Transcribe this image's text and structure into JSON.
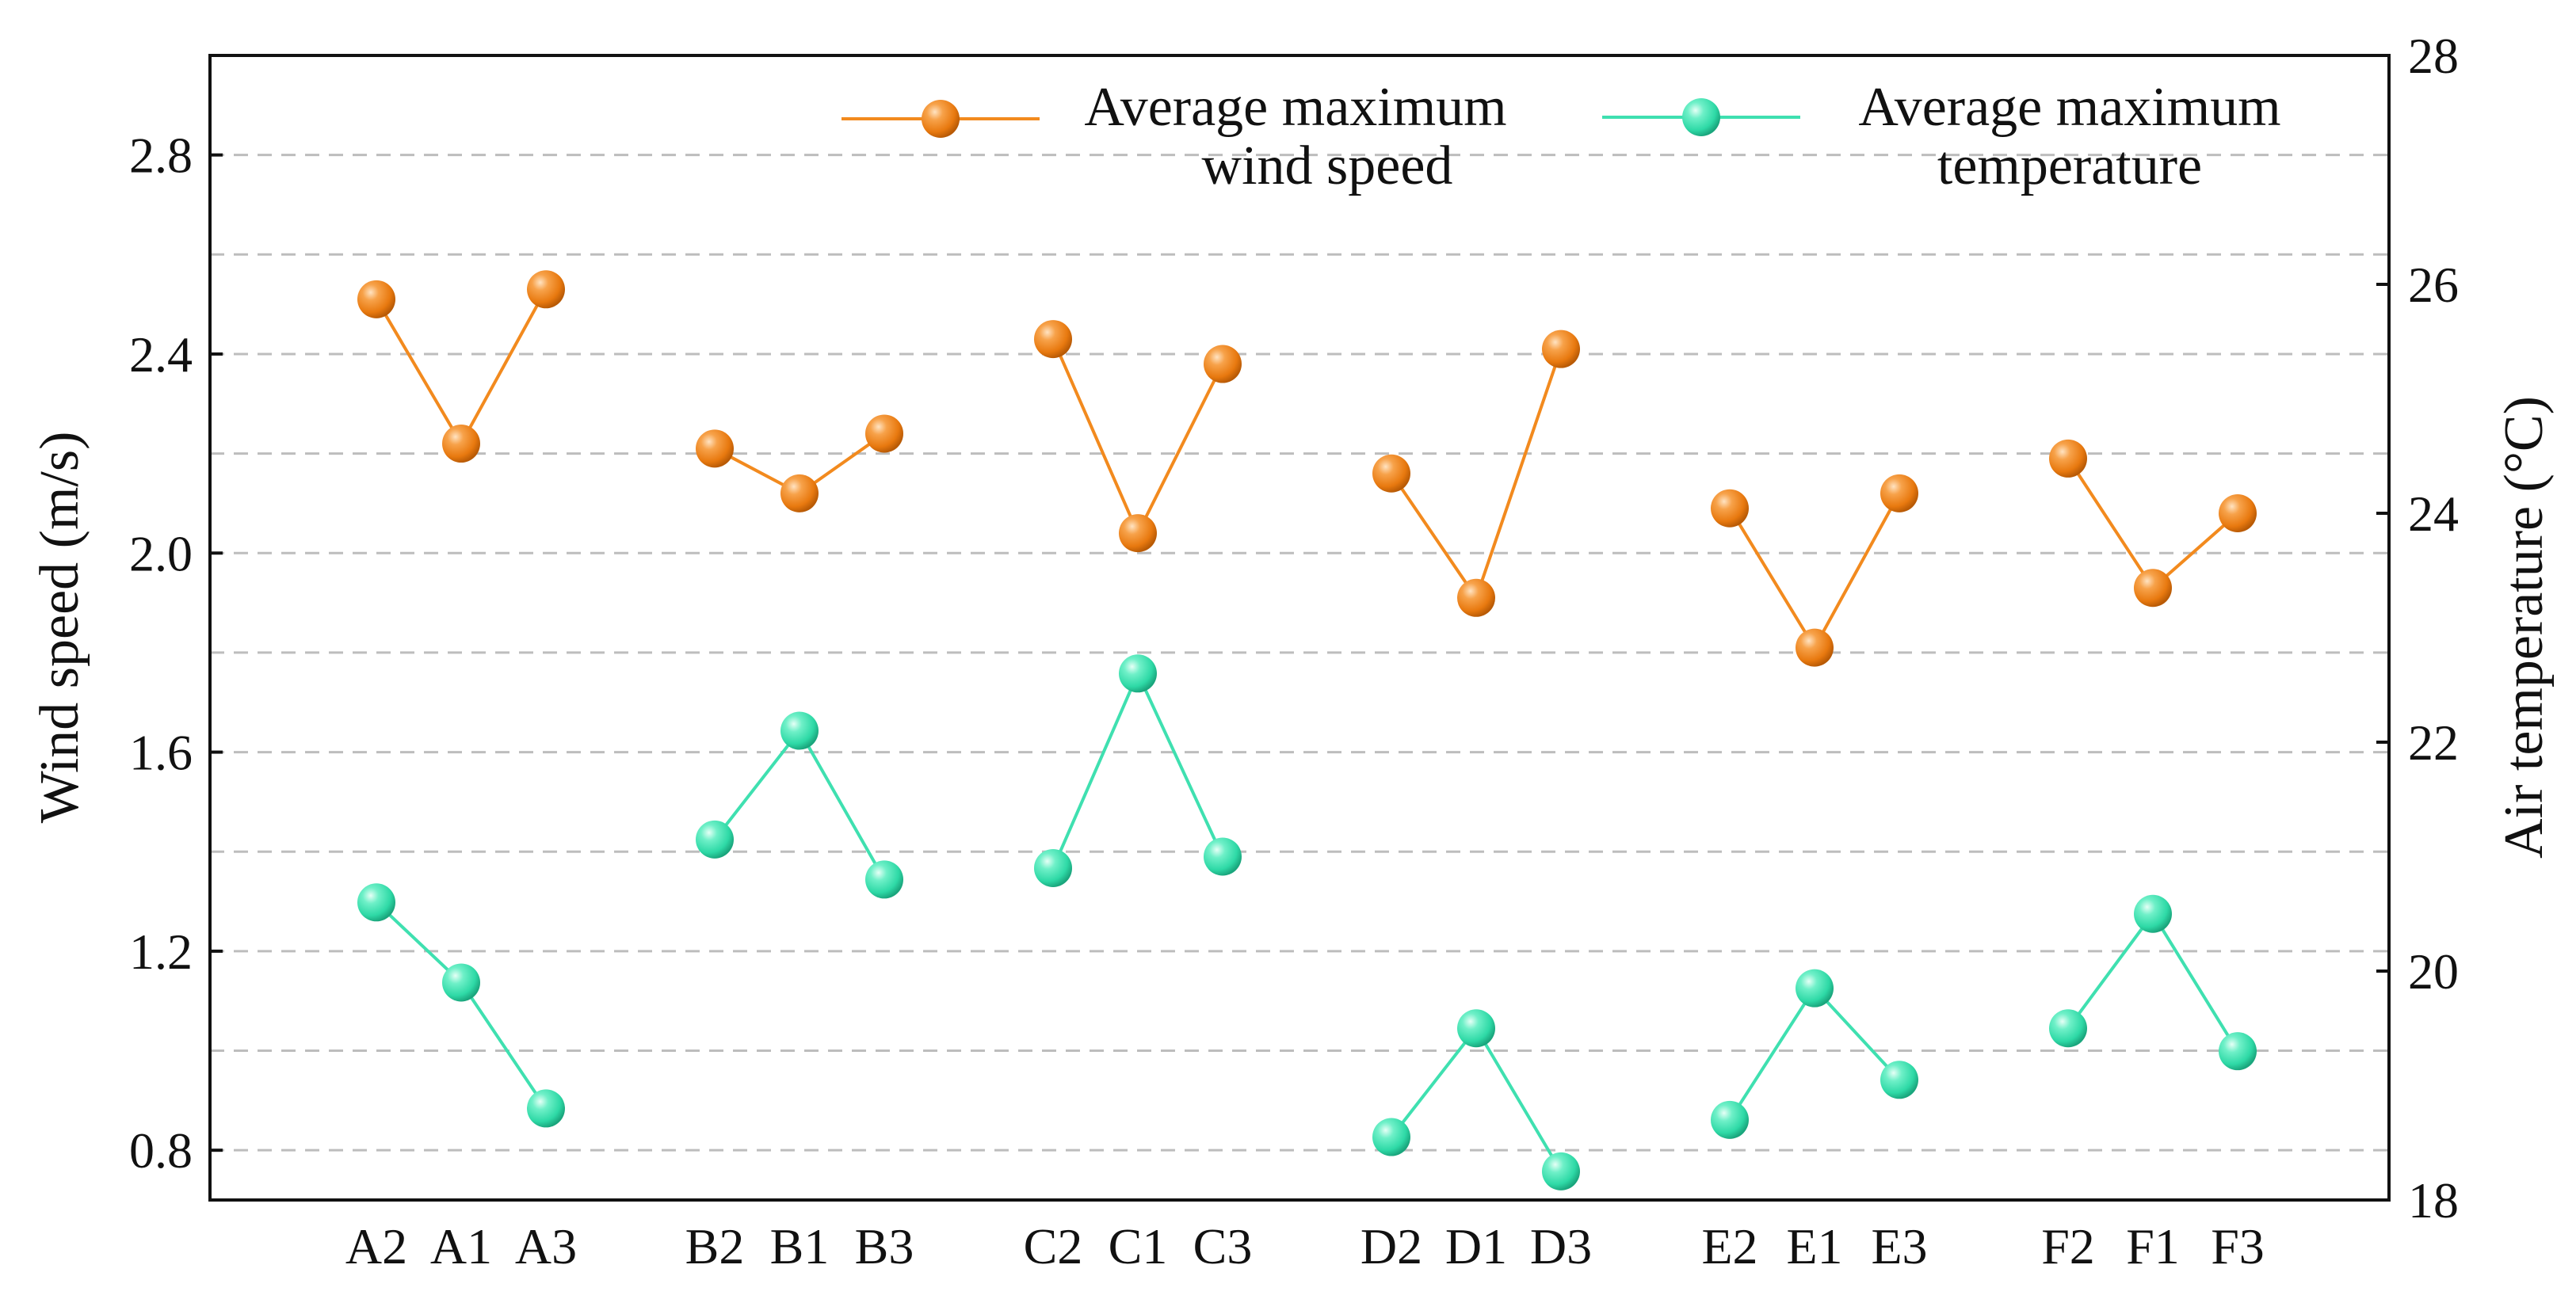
{
  "chart_data": {
    "type": "line",
    "categories": [
      "A2",
      "A1",
      "A3",
      "B2",
      "B1",
      "B3",
      "C2",
      "C1",
      "C3",
      "D2",
      "D1",
      "D3",
      "E2",
      "E1",
      "E3",
      "F2",
      "F1",
      "F3"
    ],
    "groups": [
      {
        "name": "A",
        "categories": [
          "A2",
          "A1",
          "A3"
        ]
      },
      {
        "name": "B",
        "categories": [
          "B2",
          "B1",
          "B3"
        ]
      },
      {
        "name": "C",
        "categories": [
          "C2",
          "C1",
          "C3"
        ]
      },
      {
        "name": "D",
        "categories": [
          "D2",
          "D1",
          "D3"
        ]
      },
      {
        "name": "E",
        "categories": [
          "E2",
          "E1",
          "E3"
        ]
      },
      {
        "name": "F",
        "categories": [
          "F2",
          "F1",
          "F3"
        ]
      }
    ],
    "series": [
      {
        "name": "Average maximum wind speed",
        "legend_lines": [
          "Average maximum",
          "wind speed"
        ],
        "axis": "left",
        "color": "#F28A1E",
        "values": [
          2.51,
          2.22,
          2.53,
          2.21,
          2.12,
          2.24,
          2.43,
          2.04,
          2.38,
          2.16,
          1.91,
          2.41,
          2.09,
          1.81,
          2.12,
          2.19,
          1.93,
          2.08
        ]
      },
      {
        "name": "Average maximum temperature",
        "legend_lines": [
          "Average maximum",
          "temperature"
        ],
        "axis": "right",
        "color": "#3FE0B0",
        "values": [
          20.6,
          19.9,
          18.8,
          21.15,
          22.1,
          20.8,
          20.9,
          22.6,
          21.0,
          18.55,
          19.5,
          18.25,
          18.7,
          19.85,
          19.05,
          19.5,
          20.5,
          19.3
        ]
      }
    ],
    "left_axis": {
      "label": "Wind speed (m/s)",
      "ylim": [
        0.7,
        3.0
      ],
      "ticks": [
        0.8,
        1.2,
        1.6,
        2.0,
        2.4,
        2.8
      ],
      "tick_labels": [
        "0.8",
        "1.2",
        "1.6",
        "2.0",
        "2.4",
        "2.8"
      ]
    },
    "right_axis": {
      "label": "Air temperature (°C)",
      "ylim": [
        18,
        28
      ],
      "ticks": [
        18,
        20,
        22,
        24,
        26,
        28
      ],
      "tick_labels": [
        "18",
        "20",
        "22",
        "24",
        "26",
        "28"
      ]
    },
    "grid": true,
    "grid_lines_left": [
      0.8,
      1.0,
      1.2,
      1.4,
      1.6,
      1.8,
      2.0,
      2.2,
      2.4,
      2.6,
      2.8
    ],
    "legend_position": "top-right"
  }
}
